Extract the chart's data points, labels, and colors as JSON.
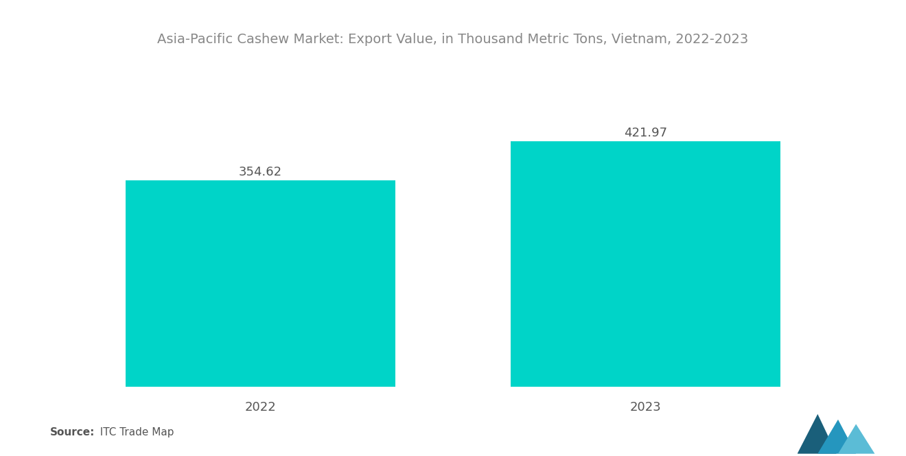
{
  "title": "Asia-Pacific Cashew Market: Export Value, in Thousand Metric Tons, Vietnam, 2022-2023",
  "categories": [
    "2022",
    "2023"
  ],
  "values": [
    354.62,
    421.97
  ],
  "bar_color": "#00D4C8",
  "label_color": "#555555",
  "title_color": "#888888",
  "source_bold": "Source:",
  "source_normal": "  ITC Trade Map",
  "background_color": "#ffffff",
  "title_fontsize": 14,
  "label_fontsize": 13,
  "tick_fontsize": 13,
  "source_fontsize": 11,
  "bar_width": 0.7
}
